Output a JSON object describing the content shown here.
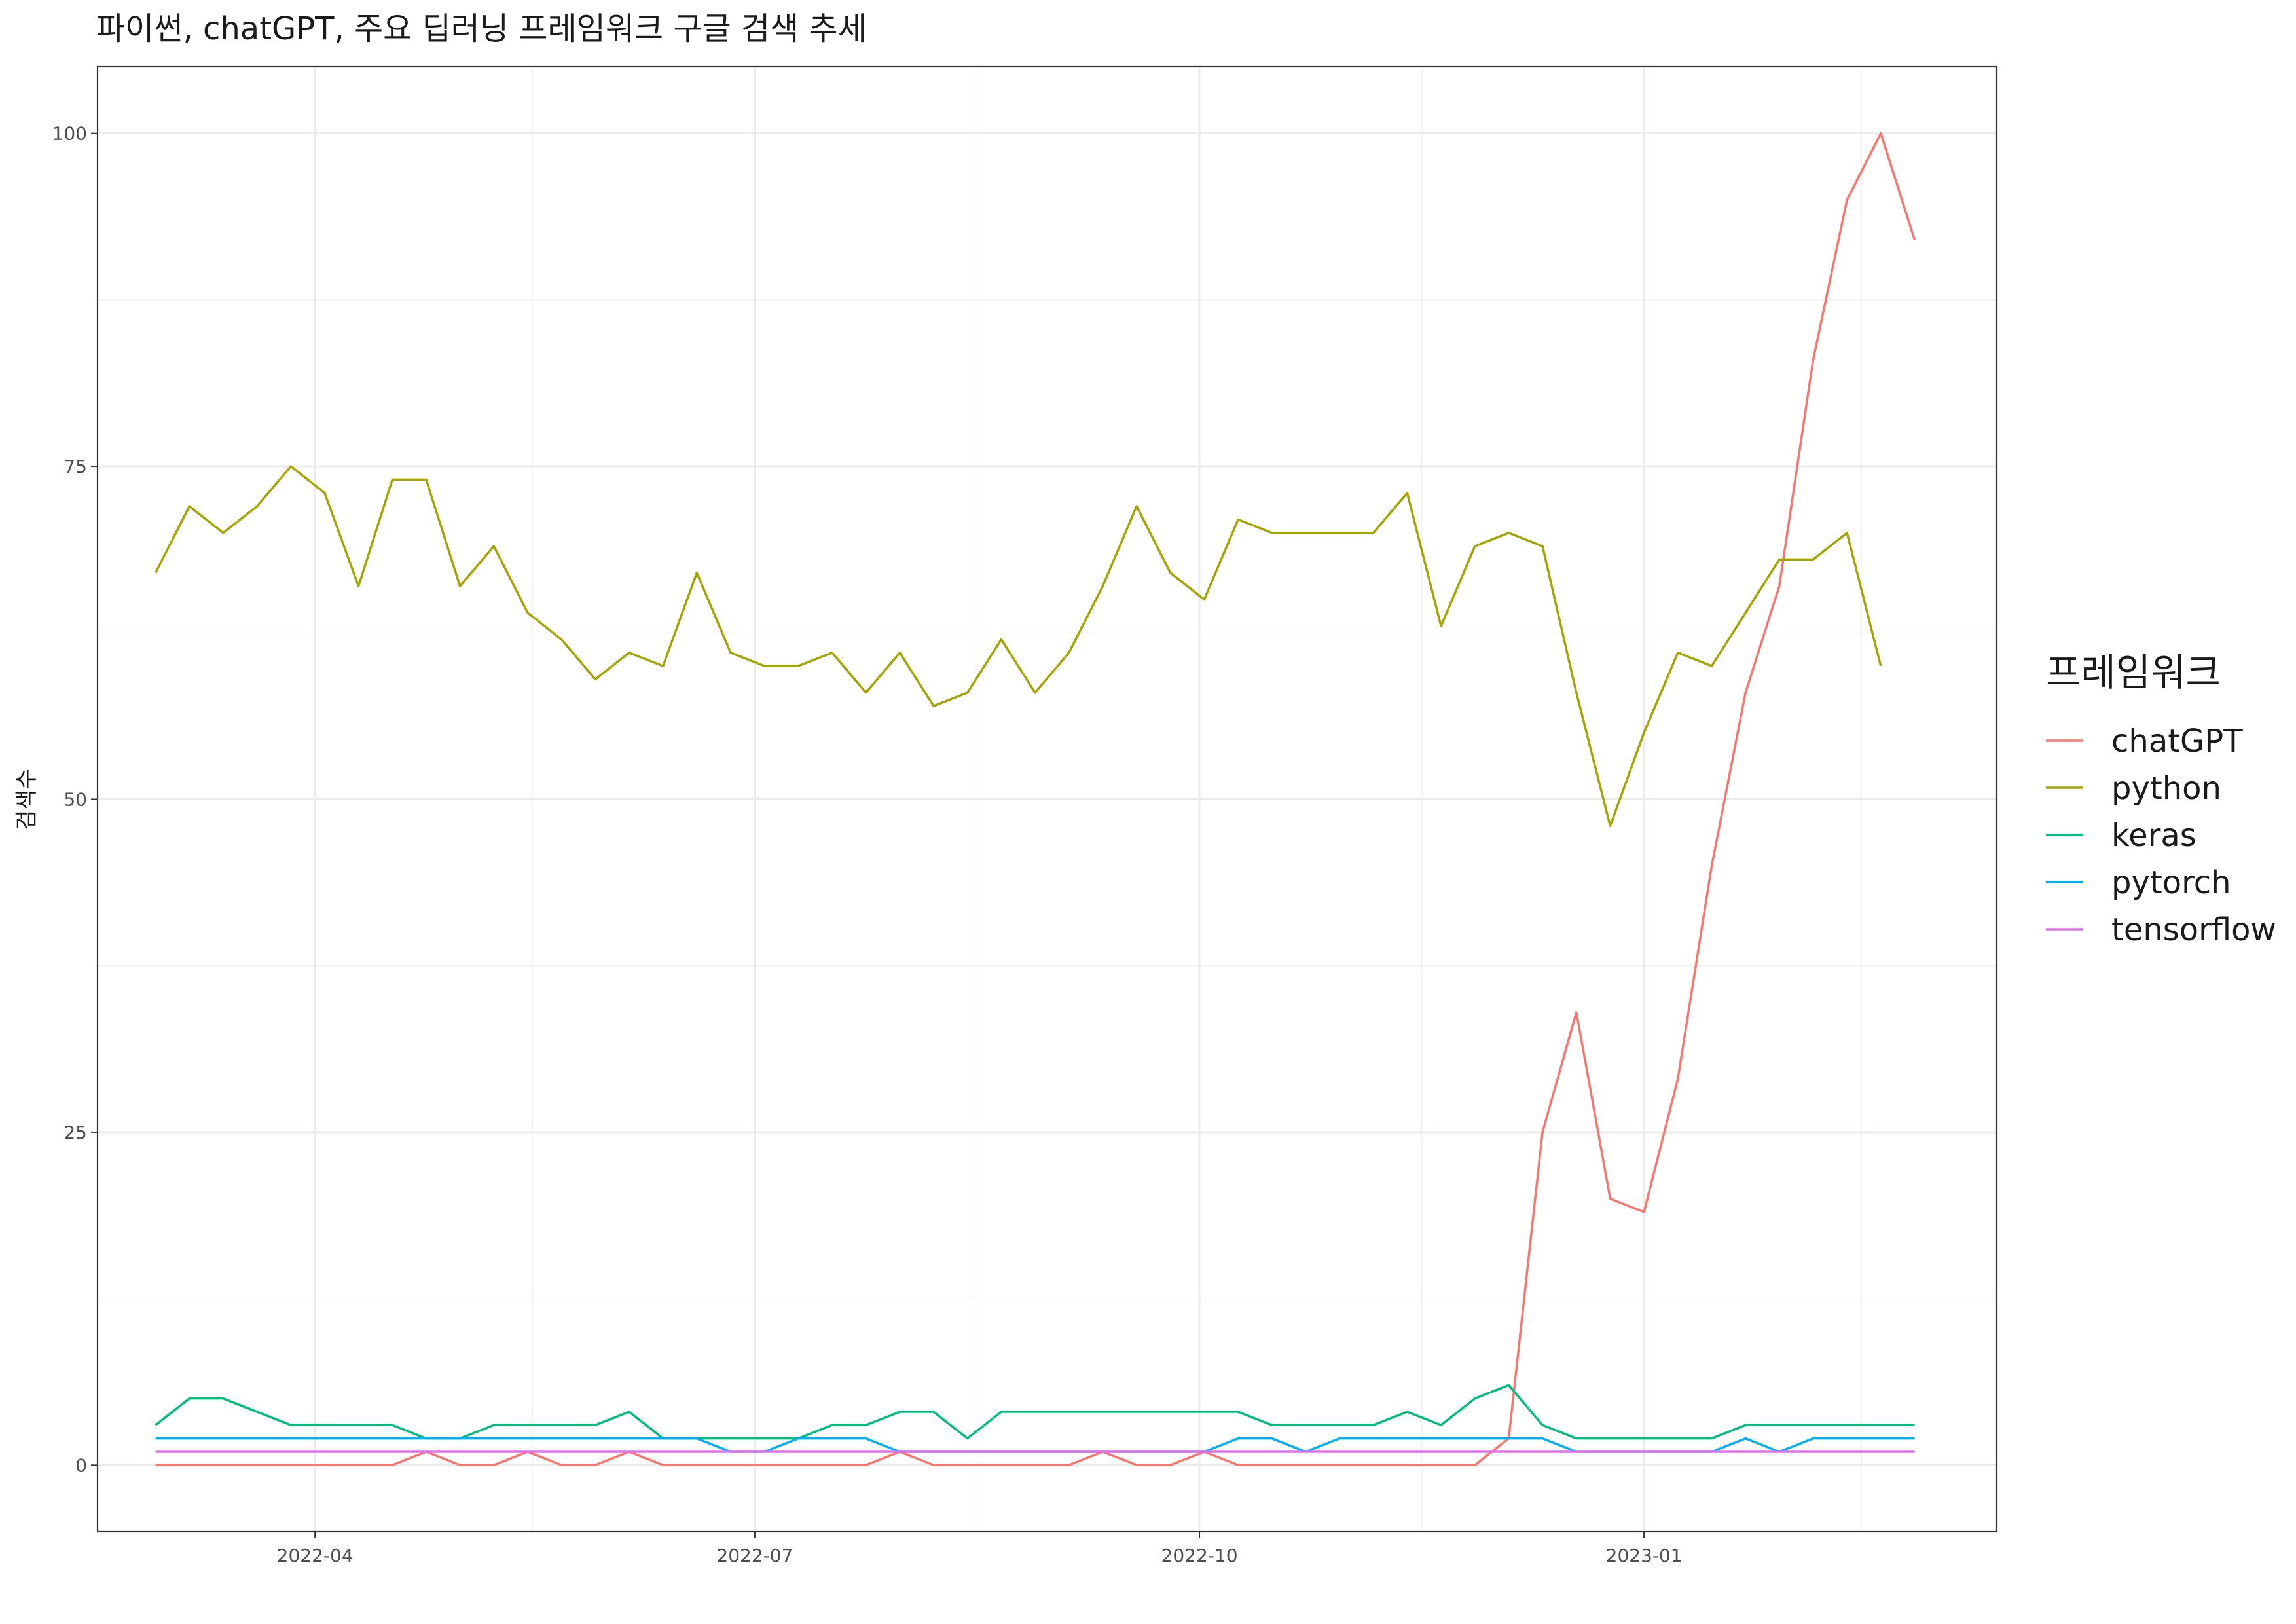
{
  "chart_data": {
    "type": "line",
    "title": "파이썬, chatGPT, 주요 딥러닝 프레임워크 구글 검색 추세",
    "xlabel": "",
    "ylabel": "검색수",
    "x": [
      "2022-02-27",
      "2022-03-06",
      "2022-03-13",
      "2022-03-20",
      "2022-03-27",
      "2022-04-03",
      "2022-04-10",
      "2022-04-17",
      "2022-04-24",
      "2022-05-01",
      "2022-05-08",
      "2022-05-15",
      "2022-05-22",
      "2022-05-29",
      "2022-06-05",
      "2022-06-12",
      "2022-06-19",
      "2022-06-26",
      "2022-07-03",
      "2022-07-10",
      "2022-07-17",
      "2022-07-24",
      "2022-07-31",
      "2022-08-07",
      "2022-08-14",
      "2022-08-21",
      "2022-08-28",
      "2022-09-04",
      "2022-09-11",
      "2022-09-18",
      "2022-09-25",
      "2022-10-02",
      "2022-10-09",
      "2022-10-16",
      "2022-10-23",
      "2022-10-30",
      "2022-11-06",
      "2022-11-13",
      "2022-11-20",
      "2022-11-27",
      "2022-12-04",
      "2022-12-11",
      "2022-12-18",
      "2022-12-25",
      "2023-01-01",
      "2023-01-08",
      "2023-01-15",
      "2023-01-22",
      "2023-01-29",
      "2023-02-05",
      "2023-02-12",
      "2023-02-19",
      "2023-02-26",
      "2023-03-05"
    ],
    "xlim": [
      "2022-02-15",
      "2023-03-15"
    ],
    "ylim": [
      -5,
      105
    ],
    "x_ticks": [
      {
        "label": "2022-04",
        "date": "2022-04-01"
      },
      {
        "label": "2022-07",
        "date": "2022-07-01"
      },
      {
        "label": "2022-10",
        "date": "2022-10-01"
      },
      {
        "label": "2023-01",
        "date": "2023-01-01"
      }
    ],
    "x_minor_ticks": [
      "2022-02-15",
      "2022-05-16",
      "2022-08-16",
      "2022-11-16",
      "2023-02-15"
    ],
    "y_ticks": [
      0,
      25,
      50,
      75,
      100
    ],
    "y_minor_ticks": [
      12.5,
      37.5,
      62.5,
      87.5
    ],
    "grid": true,
    "legend_title": "프레임워크",
    "legend_position": "right",
    "series": [
      {
        "name": "chatGPT",
        "color": "#F8766D",
        "values": [
          0,
          0,
          0,
          0,
          0,
          0,
          0,
          0,
          1,
          0,
          0,
          1,
          0,
          0,
          1,
          0,
          0,
          0,
          0,
          0,
          0,
          0,
          1,
          0,
          0,
          0,
          0,
          0,
          1,
          0,
          0,
          1,
          0,
          0,
          0,
          0,
          0,
          0,
          0,
          0,
          2,
          25,
          34,
          20,
          19,
          29,
          45,
          58,
          66,
          83,
          95,
          100,
          92,
          null
        ]
      },
      {
        "name": "python",
        "color": "#A3A500",
        "values": [
          67,
          72,
          70,
          72,
          75,
          73,
          66,
          74,
          74,
          66,
          69,
          64,
          62,
          59,
          61,
          60,
          67,
          61,
          60,
          60,
          61,
          58,
          61,
          57,
          58,
          62,
          58,
          61,
          66,
          72,
          67,
          65,
          71,
          70,
          70,
          70,
          70,
          73,
          63,
          69,
          70,
          69,
          58,
          48,
          55,
          61,
          60,
          64,
          68,
          68,
          70,
          60,
          null,
          null
        ]
      },
      {
        "name": "keras",
        "color": "#00BF7D",
        "values": [
          3,
          5,
          5,
          4,
          3,
          3,
          3,
          3,
          2,
          2,
          3,
          3,
          3,
          3,
          4,
          2,
          2,
          2,
          2,
          2,
          3,
          3,
          4,
          4,
          2,
          4,
          4,
          4,
          4,
          4,
          4,
          4,
          4,
          3,
          3,
          3,
          3,
          4,
          3,
          5,
          6,
          3,
          2,
          2,
          2,
          2,
          2,
          3,
          3,
          3,
          3,
          3,
          3,
          null
        ]
      },
      {
        "name": "pytorch",
        "color": "#00B0F6",
        "values": [
          2,
          2,
          2,
          2,
          2,
          2,
          2,
          2,
          2,
          2,
          2,
          2,
          2,
          2,
          2,
          2,
          2,
          1,
          1,
          2,
          2,
          2,
          1,
          1,
          1,
          1,
          1,
          1,
          1,
          1,
          1,
          1,
          2,
          2,
          1,
          2,
          2,
          2,
          2,
          2,
          2,
          2,
          1,
          1,
          1,
          1,
          1,
          2,
          1,
          2,
          2,
          2,
          2,
          null
        ]
      },
      {
        "name": "tensorflow",
        "color": "#E76BF3",
        "values": [
          1,
          1,
          1,
          1,
          1,
          1,
          1,
          1,
          1,
          1,
          1,
          1,
          1,
          1,
          1,
          1,
          1,
          1,
          1,
          1,
          1,
          1,
          1,
          1,
          1,
          1,
          1,
          1,
          1,
          1,
          1,
          1,
          1,
          1,
          1,
          1,
          1,
          1,
          1,
          1,
          1,
          1,
          1,
          1,
          1,
          1,
          1,
          1,
          1,
          1,
          1,
          1,
          1,
          null
        ]
      }
    ]
  }
}
